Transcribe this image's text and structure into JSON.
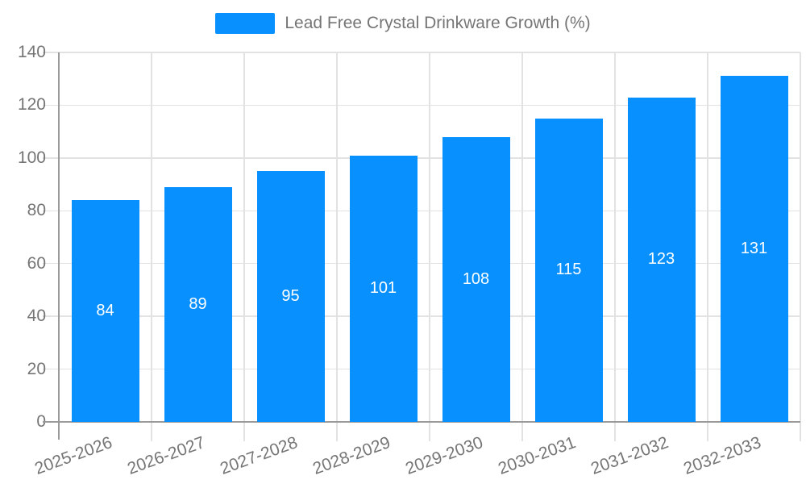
{
  "legend": {
    "label": "Lead Free Crystal Drinkware Growth (%)"
  },
  "chart_data": {
    "type": "bar",
    "title": "Lead Free Crystal Drinkware Growth (%)",
    "categories": [
      "2025-2026",
      "2026-2027",
      "2027-2028",
      "2028-2029",
      "2029-2030",
      "2030-2031",
      "2031-2032",
      "2032-2033"
    ],
    "values": [
      84,
      89,
      95,
      101,
      108,
      115,
      123,
      131
    ],
    "xlabel": "",
    "ylabel": "",
    "ylim": [
      0,
      140
    ],
    "ytick_step": 20,
    "yticks": [
      0,
      20,
      40,
      60,
      80,
      100,
      120,
      140
    ],
    "grid": true,
    "legend_position": "top-center",
    "value_labels": "inside-center",
    "x_label_rotation_deg": -20,
    "colors": {
      "bar": "#0890fe",
      "value_label": "#ffffff",
      "axis": "#9a9a9a",
      "grid": "#e2e2e2",
      "text": "#757575",
      "background": "#ffffff"
    }
  }
}
